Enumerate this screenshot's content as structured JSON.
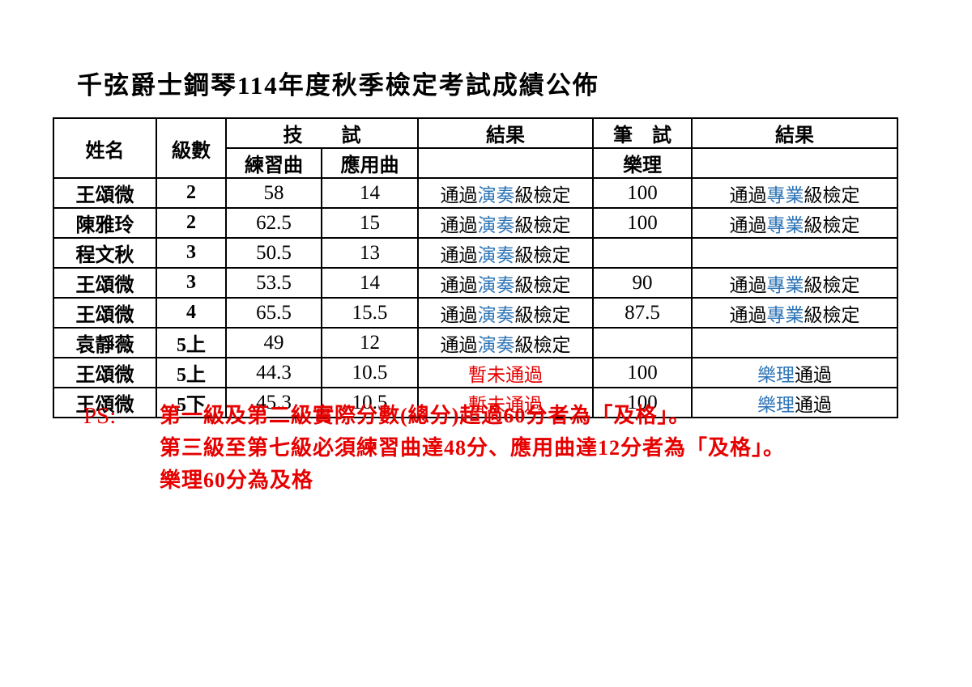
{
  "page": {
    "title": "千弦爵士鋼琴114年度秋季檢定考試成績公佈"
  },
  "table": {
    "headers": {
      "name": "姓名",
      "level": "級數",
      "tech_exam": "技　　試",
      "practice": "練習曲",
      "applied": "應用曲",
      "result": "結果",
      "written_exam": "筆　試",
      "theory": "樂理",
      "result2": "結果"
    },
    "rows": [
      {
        "name": "王頌微",
        "level": "2",
        "practice": "58",
        "applied": "14",
        "result": [
          {
            "text": "通過",
            "color": "black"
          },
          {
            "text": "演奏",
            "color": "blue"
          },
          {
            "text": "級檢定",
            "color": "black"
          }
        ],
        "theory": "100",
        "result2": [
          {
            "text": "通過",
            "color": "black"
          },
          {
            "text": "專業",
            "color": "blue"
          },
          {
            "text": "級檢定",
            "color": "black"
          }
        ]
      },
      {
        "name": "陳雅玲",
        "level": "2",
        "practice": "62.5",
        "applied": "15",
        "result": [
          {
            "text": "通過",
            "color": "black"
          },
          {
            "text": "演奏",
            "color": "blue"
          },
          {
            "text": "級檢定",
            "color": "black"
          }
        ],
        "theory": "100",
        "result2": [
          {
            "text": "通過",
            "color": "black"
          },
          {
            "text": "專業",
            "color": "blue"
          },
          {
            "text": "級檢定",
            "color": "black"
          }
        ]
      },
      {
        "name": "程文秋",
        "level": "3",
        "practice": "50.5",
        "applied": "13",
        "result": [
          {
            "text": "通過",
            "color": "black"
          },
          {
            "text": "演奏",
            "color": "blue"
          },
          {
            "text": "級檢定",
            "color": "black"
          }
        ],
        "theory": "",
        "result2": []
      },
      {
        "name": "王頌微",
        "level": "3",
        "practice": "53.5",
        "applied": "14",
        "result": [
          {
            "text": "通過",
            "color": "black"
          },
          {
            "text": "演奏",
            "color": "blue"
          },
          {
            "text": "級檢定",
            "color": "black"
          }
        ],
        "theory": "90",
        "result2": [
          {
            "text": "通過",
            "color": "black"
          },
          {
            "text": "專業",
            "color": "blue"
          },
          {
            "text": "級檢定",
            "color": "black"
          }
        ]
      },
      {
        "name": "王頌微",
        "level": "4",
        "practice": "65.5",
        "applied": "15.5",
        "result": [
          {
            "text": "通過",
            "color": "black"
          },
          {
            "text": "演奏",
            "color": "blue"
          },
          {
            "text": "級檢定",
            "color": "black"
          }
        ],
        "theory": "87.5",
        "result2": [
          {
            "text": "通過",
            "color": "black"
          },
          {
            "text": "專業",
            "color": "blue"
          },
          {
            "text": "級檢定",
            "color": "black"
          }
        ]
      },
      {
        "name": "袁靜薇",
        "level": "5上",
        "practice": "49",
        "applied": "12",
        "result": [
          {
            "text": "通過",
            "color": "black"
          },
          {
            "text": "演奏",
            "color": "blue"
          },
          {
            "text": "級檢定",
            "color": "black"
          }
        ],
        "theory": "",
        "result2": []
      },
      {
        "name": "王頌微",
        "level": "5上",
        "practice": "44.3",
        "applied": "10.5",
        "result": [
          {
            "text": "暫未通過",
            "color": "red"
          }
        ],
        "theory": "100",
        "result2": [
          {
            "text": "樂理",
            "color": "blue"
          },
          {
            "text": "通過",
            "color": "black"
          }
        ]
      },
      {
        "name": "王頌微",
        "level": "5下",
        "practice": "45.3",
        "applied": "10.5",
        "result": [
          {
            "text": "暫未通過",
            "color": "red"
          }
        ],
        "theory": "100",
        "result2": [
          {
            "text": "樂理",
            "color": "blue"
          },
          {
            "text": "通過",
            "color": "black"
          }
        ]
      }
    ]
  },
  "notes": {
    "ps_label": "PS:",
    "lines": [
      "第一級及第二級實際分數(總分)超過60分者為「及格」。",
      "第三級至第七級必須練習曲達48分、應用曲達12分者為「及格」。",
      "樂理60分為及格"
    ]
  },
  "colors": {
    "text_black": "#000000",
    "accent_blue": "#2e75b6",
    "alert_red": "#e60000"
  }
}
